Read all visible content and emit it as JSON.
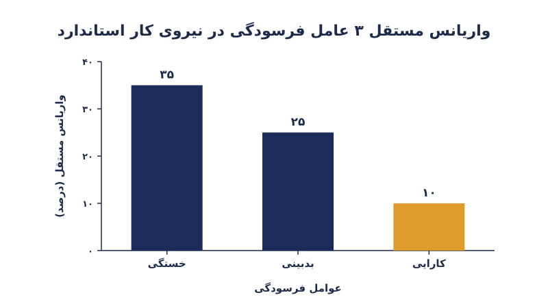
{
  "chart_data": {
    "type": "bar",
    "title": "واریانس مستقل ۳ عامل فرسودگی در نیروی کار استاندارد",
    "xlabel": "عوامل فرسودگی",
    "ylabel": "واریانس مستقل (درصد)",
    "categories": [
      "خستگی",
      "بدبینی",
      "کارایی"
    ],
    "values": [
      35,
      25,
      10
    ],
    "value_labels": [
      "۳۵",
      "۲۵",
      "۱۰"
    ],
    "ylim": [
      0,
      40
    ],
    "yticks": [
      0,
      10,
      20,
      30,
      40
    ],
    "ytick_labels": [
      "۰",
      "۱۰",
      "۲۰",
      "۳۰",
      "۴۰"
    ],
    "bar_colors": [
      "#1c2b5a",
      "#1c2b5a",
      "#e09b2d"
    ],
    "grid": false,
    "legend": "none"
  }
}
